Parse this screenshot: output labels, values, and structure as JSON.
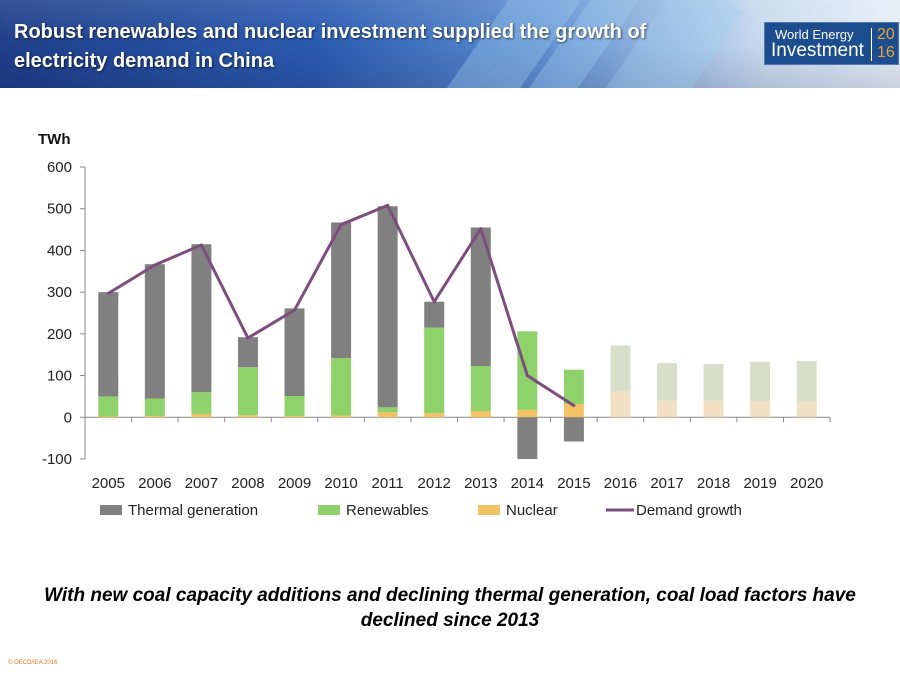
{
  "header": {
    "title": "Robust renewables and nuclear investment supplied the growth of electricity demand in China",
    "logo": {
      "line1": "World Energy",
      "line2": "Investment",
      "year_top": "20",
      "year_bottom": "16"
    }
  },
  "caption": "With new coal capacity additions and declining thermal generation, coal load factors have declined since 2013",
  "copyright": "© OECD/IEA 2016",
  "colors": {
    "thermal": "#808080",
    "renewables": "#8fd16a",
    "nuclear": "#f2c264",
    "demand": "#7e4d7f",
    "projected_thermal": "#c9d3b8",
    "projected_nuclear": "#eed6b0"
  },
  "chart_data": {
    "type": "bar",
    "stacked": true,
    "title": "",
    "ylabel": "TWh",
    "xlabel": "",
    "ylim": [
      -100,
      600
    ],
    "yticks": [
      -100,
      0,
      100,
      200,
      300,
      400,
      500,
      600
    ],
    "categories": [
      "2005",
      "2006",
      "2007",
      "2008",
      "2009",
      "2010",
      "2011",
      "2012",
      "2013",
      "2014",
      "2015",
      "2016",
      "2017",
      "2018",
      "2019",
      "2020"
    ],
    "projected_from": "2016",
    "series": [
      {
        "name": "Thermal generation",
        "kind": "bar",
        "values": [
          250,
          322,
          355,
          72,
          210,
          325,
          482,
          62,
          332,
          -100,
          -58,
          110,
          90,
          88,
          95,
          98
        ]
      },
      {
        "name": "Renewables",
        "kind": "bar",
        "values": [
          48,
          42,
          52,
          115,
          48,
          138,
          12,
          205,
          108,
          188,
          82,
          0,
          0,
          0,
          0,
          0
        ]
      },
      {
        "name": "Nuclear",
        "kind": "bar",
        "values": [
          2,
          3,
          8,
          5,
          3,
          4,
          12,
          10,
          15,
          18,
          32,
          62,
          40,
          40,
          38,
          37
        ]
      },
      {
        "name": "Demand growth",
        "kind": "line",
        "values": [
          297,
          365,
          413,
          190,
          257,
          462,
          508,
          277,
          452,
          100,
          28,
          null,
          null,
          null,
          null,
          null
        ]
      }
    ],
    "legend": [
      "Thermal generation",
      "Renewables",
      "Nuclear",
      "Demand growth"
    ],
    "legend_position": "bottom"
  }
}
